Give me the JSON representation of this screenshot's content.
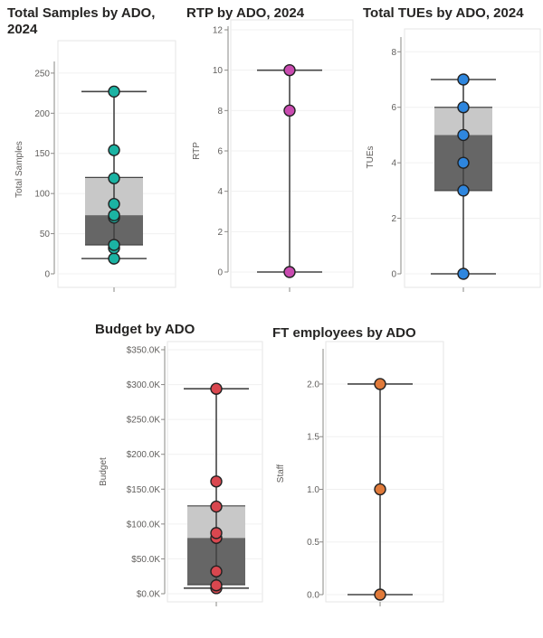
{
  "chart_data": [
    {
      "type": "boxplot",
      "title": "Total Samples by ADO, 2024",
      "ylabel": "Total Samples",
      "ylim": [
        0,
        260
      ],
      "ticks": [
        0,
        50,
        100,
        150,
        200,
        250
      ],
      "tick_labels": [
        "0",
        "50",
        "100",
        "150",
        "200",
        "250"
      ],
      "box": {
        "min": 19,
        "q1": 36,
        "median": 73,
        "q3": 120,
        "max": 227
      },
      "points": [
        19,
        32,
        36,
        70,
        73,
        87,
        119,
        154,
        227
      ],
      "point_color": "#1bb3a3"
    },
    {
      "type": "boxplot",
      "title": "RTP by ADO, 2024",
      "ylabel": "RTP",
      "ylim": [
        0,
        12
      ],
      "ticks": [
        0,
        2,
        4,
        6,
        8,
        10,
        12
      ],
      "tick_labels": [
        "0",
        "2",
        "4",
        "6",
        "8",
        "10",
        "12"
      ],
      "box": {
        "min": 0,
        "q1": 0,
        "median": 0,
        "q3": 0,
        "max": 10
      },
      "points": [
        0,
        8,
        10
      ],
      "point_color": "#c94bb0"
    },
    {
      "type": "boxplot",
      "title": "Total TUEs by ADO, 2024",
      "ylabel": "TUEs",
      "ylim": [
        0,
        8.4
      ],
      "ticks": [
        0,
        2,
        4,
        6,
        8
      ],
      "tick_labels": [
        "0",
        "2",
        "4",
        "6",
        "8"
      ],
      "box": {
        "min": 0,
        "q1": 3,
        "median": 5,
        "q3": 6,
        "max": 7
      },
      "points": [
        0,
        3,
        4,
        5,
        6,
        7
      ],
      "point_color": "#2e86de"
    },
    {
      "type": "boxplot",
      "title": "Budget by ADO",
      "ylabel": "Budget",
      "ylim": [
        0,
        350
      ],
      "ticks": [
        0,
        50,
        100,
        150,
        200,
        250,
        300,
        350
      ],
      "tick_labels": [
        "$0.0K",
        "$50.0K",
        "$100.0K",
        "$150.0K",
        "$200.0K",
        "$250.0K",
        "$300.0K",
        "$350.0K"
      ],
      "box": {
        "min": 8,
        "q1": 13,
        "median": 80,
        "q3": 126,
        "max": 294
      },
      "points": [
        8,
        12,
        32,
        80,
        87,
        125,
        161,
        294
      ],
      "point_color": "#d9474f"
    },
    {
      "type": "boxplot",
      "title": "FT employees by ADO",
      "ylabel": "Staff",
      "ylim": [
        0,
        2.3
      ],
      "ticks": [
        0,
        0.5,
        1,
        1.5,
        2
      ],
      "tick_labels": [
        "0.0",
        "0.5",
        "1.0",
        "1.5",
        "2.0"
      ],
      "box": {
        "min": 0,
        "q1": 0,
        "median": 0,
        "q3": 0,
        "max": 2
      },
      "points": [
        0,
        1,
        2
      ],
      "point_color": "#e07a3a"
    }
  ]
}
